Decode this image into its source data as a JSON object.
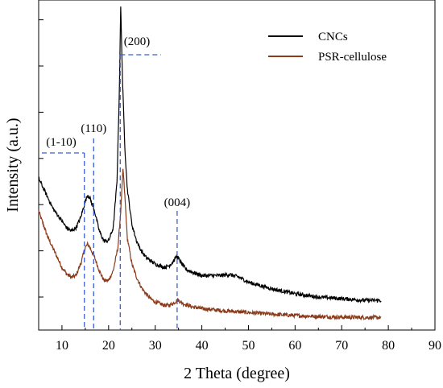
{
  "chart_data": {
    "type": "line",
    "xlabel": "2 Theta (degree)",
    "ylabel": "Intensity (a.u.)",
    "xlim": [
      5,
      90
    ],
    "x_ticks": [
      "10",
      "20",
      "30",
      "40",
      "50",
      "60",
      "70",
      "80",
      "90"
    ],
    "y_tick_labels": "none",
    "legend": {
      "placement": "top-right",
      "entries": [
        {
          "name": "CNCs",
          "color": "#000000"
        },
        {
          "name": "PSR-cellulose",
          "color": "#8B3A1A"
        }
      ]
    },
    "series": [
      {
        "name": "CNCs",
        "color": "#000000",
        "points": [
          [
            5,
            46
          ],
          [
            6,
            43
          ],
          [
            7,
            40
          ],
          [
            8,
            37
          ],
          [
            9,
            35
          ],
          [
            10,
            33
          ],
          [
            11,
            31
          ],
          [
            12,
            30
          ],
          [
            13,
            31
          ],
          [
            14,
            34
          ],
          [
            15,
            39
          ],
          [
            15.5,
            41
          ],
          [
            16,
            40
          ],
          [
            17,
            36
          ],
          [
            18,
            30
          ],
          [
            19,
            27
          ],
          [
            20,
            27
          ],
          [
            21,
            31
          ],
          [
            21.8,
            45
          ],
          [
            22.3,
            72
          ],
          [
            22.6,
            98
          ],
          [
            23.0,
            75
          ],
          [
            23.5,
            55
          ],
          [
            24,
            43
          ],
          [
            25,
            32
          ],
          [
            26,
            27
          ],
          [
            27,
            24
          ],
          [
            28,
            22
          ],
          [
            29,
            21
          ],
          [
            30,
            20
          ],
          [
            31,
            19.5
          ],
          [
            32,
            19
          ],
          [
            33,
            19.5
          ],
          [
            34,
            21
          ],
          [
            34.6,
            22.5
          ],
          [
            35.5,
            20.5
          ],
          [
            36.5,
            18.5
          ],
          [
            38,
            17.5
          ],
          [
            40,
            16.5
          ],
          [
            42,
            16.5
          ],
          [
            44,
            16.5
          ],
          [
            46,
            16.8
          ],
          [
            48,
            16
          ],
          [
            50,
            14.5
          ],
          [
            55,
            12.5
          ],
          [
            60,
            11
          ],
          [
            65,
            10
          ],
          [
            70,
            9.5
          ],
          [
            75,
            9
          ],
          [
            78.5,
            9
          ]
        ]
      },
      {
        "name": "PSR-cellulose",
        "color": "#8B3A1A",
        "points": [
          [
            5,
            36
          ],
          [
            6,
            32
          ],
          [
            7,
            28
          ],
          [
            8,
            25
          ],
          [
            9,
            22
          ],
          [
            10,
            19
          ],
          [
            11,
            17
          ],
          [
            12,
            16
          ],
          [
            13,
            16.5
          ],
          [
            14,
            20
          ],
          [
            15,
            25
          ],
          [
            15.5,
            26
          ],
          [
            16,
            25
          ],
          [
            17,
            22
          ],
          [
            18,
            18
          ],
          [
            19,
            15
          ],
          [
            20,
            15
          ],
          [
            21,
            18
          ],
          [
            22,
            25
          ],
          [
            22.6,
            36
          ],
          [
            23.1,
            49
          ],
          [
            23.6,
            38
          ],
          [
            24,
            28
          ],
          [
            25,
            20
          ],
          [
            26,
            16
          ],
          [
            27,
            13
          ],
          [
            28,
            11
          ],
          [
            29,
            9.5
          ],
          [
            30,
            8.5
          ],
          [
            31,
            8
          ],
          [
            32,
            7.5
          ],
          [
            33,
            7.5
          ],
          [
            34,
            8.2
          ],
          [
            34.8,
            9.2
          ],
          [
            36,
            8
          ],
          [
            38,
            7
          ],
          [
            40,
            6.5
          ],
          [
            45,
            5.8
          ],
          [
            50,
            5.3
          ],
          [
            55,
            4.8
          ],
          [
            60,
            4.4
          ],
          [
            65,
            4.1
          ],
          [
            70,
            3.9
          ],
          [
            75,
            3.8
          ],
          [
            78.5,
            3.8
          ]
        ]
      }
    ],
    "annotations": [
      {
        "text": "(1-10)",
        "x": 14.8
      },
      {
        "text": "(110)",
        "x": 16.8
      },
      {
        "text": "(200)",
        "x": 22.5
      },
      {
        "text": "(004)",
        "x": 34.7
      }
    ]
  }
}
